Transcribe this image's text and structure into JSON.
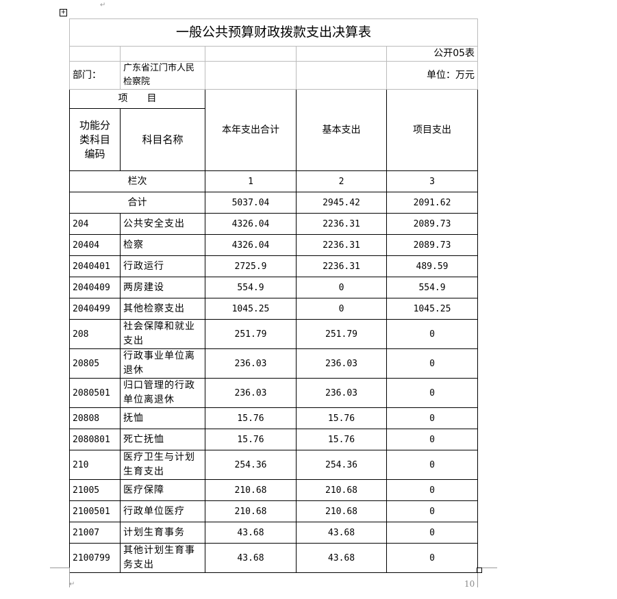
{
  "title": "一般公共预算财政拨款支出决算表",
  "table_no": "公开05表",
  "dept_label": "部门：",
  "dept_value": "广东省江门市人民检察院",
  "unit": "单位：万元",
  "headers": {
    "item": "项　　目",
    "code": "功能分类科目编码",
    "name": "科目名称",
    "total": "本年支出合计",
    "basic": "基本支出",
    "project": "项目支出"
  },
  "col_row": {
    "label": "栏次",
    "c1": "1",
    "c2": "2",
    "c3": "3"
  },
  "sum_row": {
    "label": "合计",
    "total": "5037.04",
    "basic": "2945.42",
    "project": "2091.62"
  },
  "rows": [
    {
      "code": "204",
      "name": "公共安全支出",
      "total": "4326.04",
      "basic": "2236.31",
      "project": "2089.73"
    },
    {
      "code": "20404",
      "name": "检察",
      "total": "4326.04",
      "basic": "2236.31",
      "project": "2089.73"
    },
    {
      "code": "2040401",
      "name": "行政运行",
      "total": "2725.9",
      "basic": "2236.31",
      "project": "489.59"
    },
    {
      "code": "2040409",
      "name": "两房建设",
      "total": "554.9",
      "basic": "0",
      "project": "554.9"
    },
    {
      "code": "2040499",
      "name": "其他检察支出",
      "total": "1045.25",
      "basic": "0",
      "project": "1045.25"
    },
    {
      "code": "208",
      "name": "社会保障和就业支出",
      "total": "251.79",
      "basic": "251.79",
      "project": "0"
    },
    {
      "code": "20805",
      "name": "行政事业单位离退休",
      "total": "236.03",
      "basic": "236.03",
      "project": "0"
    },
    {
      "code": "2080501",
      "name": "归口管理的行政单位离退休",
      "total": "236.03",
      "basic": "236.03",
      "project": "0"
    },
    {
      "code": "20808",
      "name": "抚恤",
      "total": "15.76",
      "basic": "15.76",
      "project": "0"
    },
    {
      "code": "2080801",
      "name": "死亡抚恤",
      "total": "15.76",
      "basic": "15.76",
      "project": "0"
    },
    {
      "code": "210",
      "name": "医疗卫生与计划生育支出",
      "total": "254.36",
      "basic": "254.36",
      "project": "0"
    },
    {
      "code": "21005",
      "name": "医疗保障",
      "total": "210.68",
      "basic": "210.68",
      "project": "0"
    },
    {
      "code": "2100501",
      "name": "行政单位医疗",
      "total": "210.68",
      "basic": "210.68",
      "project": "0"
    },
    {
      "code": "21007",
      "name": "计划生育事务",
      "total": "43.68",
      "basic": "43.68",
      "project": "0"
    },
    {
      "code": "2100799",
      "name": "其他计划生育事务支出",
      "total": "43.68",
      "basic": "43.68",
      "project": "0"
    }
  ],
  "page_number": "10"
}
